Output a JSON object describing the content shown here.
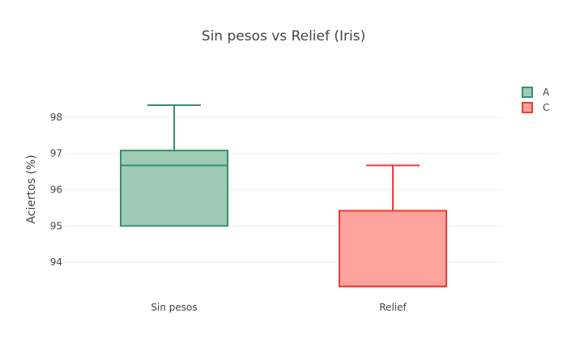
{
  "chart_data": {
    "type": "box",
    "title": "Sin pesos vs Relief (Iris)",
    "xlabel": "",
    "ylabel": "Aciertos (%)",
    "ylim": [
      93.2,
      99.0
    ],
    "yticks": [
      94,
      95,
      96,
      97,
      98
    ],
    "grid": true,
    "legend_position": "top-right",
    "categories": [
      "Sin pesos",
      "Relief"
    ],
    "series": [
      {
        "name": "A",
        "category": "Sin pesos",
        "min": 95.0,
        "q1": 95.0,
        "median": 96.67,
        "q3": 97.08,
        "max": 98.33,
        "line_color": "#3a8f69",
        "fill_color": "#9fcbb5"
      },
      {
        "name": "C",
        "category": "Relief",
        "min": 93.33,
        "q1": 93.33,
        "median": 93.33,
        "q3": 95.42,
        "max": 96.67,
        "line_color": "#f03a32",
        "fill_color": "#fda29c"
      }
    ]
  }
}
